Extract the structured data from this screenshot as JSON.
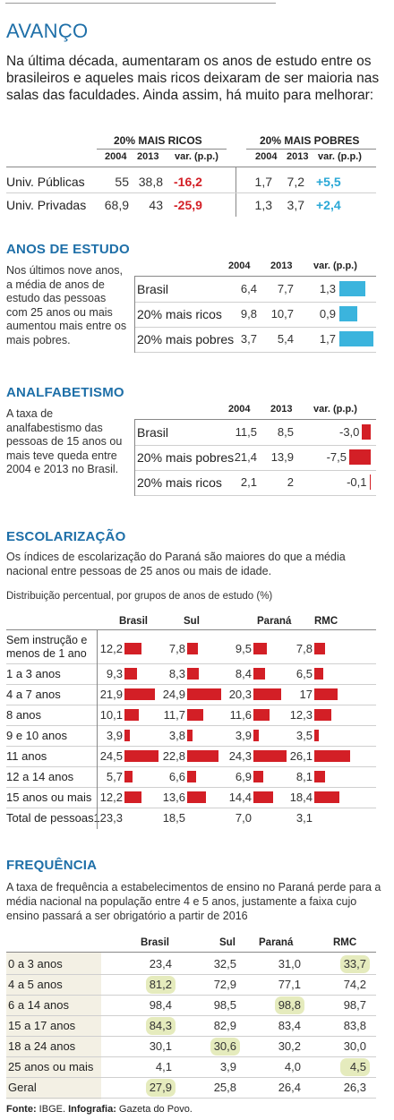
{
  "title": "AVANÇO",
  "intro": "Na última década, aumentaram os anos de estudo entre os brasileiros e aqueles mais ricos deixaram de ser maioria nas salas das faculdades. Ainda assim, há muito para melhorar:",
  "chart_data": [
    {
      "type": "table",
      "groups": [
        "20% MAIS RICOS",
        "20% MAIS POBRES"
      ],
      "columns": [
        "2004",
        "2013",
        "var. (p.p.)",
        "2004",
        "2013",
        "var. (p.p.)"
      ],
      "rows": [
        {
          "label": "Univ. Públicas",
          "rich": [
            "55",
            "38,8",
            "-16,2"
          ],
          "poor": [
            "1,7",
            "7,2",
            "+5,5"
          ]
        },
        {
          "label": "Univ. Privadas",
          "rich": [
            "68,9",
            "43",
            "-25,9"
          ],
          "poor": [
            "1,3",
            "3,7",
            "+2,4"
          ]
        }
      ]
    },
    {
      "type": "bar",
      "title": "ANOS DE ESTUDO",
      "description": "Nos últimos nove anos, a média de anos de estudo das pessoas com 25 anos ou mais aumentou mais entre os mais pobres.",
      "columns": [
        "2004",
        "2013",
        "var. (p.p.)"
      ],
      "rows": [
        {
          "label": "Brasil",
          "v2004": "6,4",
          "v2013": "7,7",
          "var": "1,3",
          "value": 1.3
        },
        {
          "label": "20% mais ricos",
          "v2004": "9,8",
          "v2013": "10,7",
          "var": "0,9",
          "value": 0.9
        },
        {
          "label": "20% mais pobres",
          "v2004": "3,7",
          "v2013": "5,4",
          "var": "1,7",
          "value": 1.7
        }
      ],
      "bar_color": "#3bb4dd"
    },
    {
      "type": "bar",
      "title": "ANALFABETISMO",
      "description": "A taxa de analfabestismo das pessoas de 15 anos ou mais teve queda entre 2004 e 2013 no Brasil.",
      "columns": [
        "2004",
        "2013",
        "var. (p.p.)"
      ],
      "rows": [
        {
          "label": "Brasil",
          "v2004": "11,5",
          "v2013": "8,5",
          "var": "-3,0",
          "value": -3.0
        },
        {
          "label": "20% mais pobres",
          "v2004": "21,4",
          "v2013": "13,9",
          "var": "-7,5",
          "value": -7.5
        },
        {
          "label": "20% mais ricos",
          "v2004": "2,1",
          "v2013": "2",
          "var": "-0,1",
          "value": -0.1
        }
      ],
      "bar_color": "#d31f26"
    },
    {
      "type": "bar",
      "title": "ESCOLARIZAÇÃO",
      "description": "Os índices de escolarização do Paraná são maiores do que a média nacional entre pessoas de 25 anos ou mais de idade.",
      "subtitle": "Distribuição percentual, por grupos de anos de estudo (%)",
      "series_names": [
        "Brasil",
        "Sul",
        "Paraná",
        "RMC"
      ],
      "rows": [
        {
          "label": "Sem instrução e menos de 1 ano",
          "values": [
            "12,2",
            "7,8",
            "9,5",
            "7,8"
          ],
          "num": [
            12.2,
            7.8,
            9.5,
            7.8
          ]
        },
        {
          "label": "1 a 3 anos",
          "values": [
            "9,3",
            "8,3",
            "8,4",
            "6,5"
          ],
          "num": [
            9.3,
            8.3,
            8.4,
            6.5
          ]
        },
        {
          "label": "4 a 7 anos",
          "values": [
            "21,9",
            "24,9",
            "20,3",
            "17"
          ],
          "num": [
            21.9,
            24.9,
            20.3,
            17
          ]
        },
        {
          "label": "8 anos",
          "values": [
            "10,1",
            "11,7",
            "11,6",
            "12,3"
          ],
          "num": [
            10.1,
            11.7,
            11.6,
            12.3
          ]
        },
        {
          "label": "9 e 10 anos",
          "values": [
            "3,9",
            "3,8",
            "3,9",
            "3,5"
          ],
          "num": [
            3.9,
            3.8,
            3.9,
            3.5
          ]
        },
        {
          "label": "11 anos",
          "values": [
            "24,5",
            "22,8",
            "24,3",
            "26,1"
          ],
          "num": [
            24.5,
            22.8,
            24.3,
            26.1
          ]
        },
        {
          "label": "12 a 14 anos",
          "values": [
            "5,7",
            "6,6",
            "6,9",
            "8,1"
          ],
          "num": [
            5.7,
            6.6,
            6.9,
            8.1
          ]
        },
        {
          "label": "15 anos ou mais",
          "values": [
            "12,2",
            "13,6",
            "14,4",
            "18,4"
          ],
          "num": [
            12.2,
            13.6,
            14.4,
            18.4
          ]
        }
      ],
      "total": {
        "label": "Total de pessoas",
        "values": [
          "123,3",
          "18,5",
          "7,0",
          "3,1"
        ]
      },
      "bar_color": "#d31f26"
    },
    {
      "type": "table",
      "title": "FREQUÊNCIA",
      "description": "A taxa de frequência a estabelecimentos de ensino no Paraná perde para a média nacional na população entre 4 e 5 anos, justamente a faixa cujo ensino passará a ser obrigatório a partir de 2016",
      "columns": [
        "Brasil",
        "Sul",
        "Paraná",
        "RMC"
      ],
      "rows": [
        {
          "label": "0 a 3 anos",
          "values": [
            "23,4",
            "32,5",
            "31,0",
            "33,7"
          ],
          "highlight": 3
        },
        {
          "label": "4 a 5 anos",
          "values": [
            "81,2",
            "72,9",
            "77,1",
            "74,2"
          ],
          "highlight": 0
        },
        {
          "label": "6 a 14 anos",
          "values": [
            "98,4",
            "98,5",
            "98,8",
            "98,7"
          ],
          "highlight": 2
        },
        {
          "label": "15 a 17 anos",
          "values": [
            "84,3",
            "82,9",
            "83,4",
            "83,8"
          ],
          "highlight": 0
        },
        {
          "label": "18 a 24 anos",
          "values": [
            "30,1",
            "30,6",
            "30,2",
            "30,0"
          ],
          "highlight": 1
        },
        {
          "label": "25 anos ou mais",
          "values": [
            "4,1",
            "3,9",
            "4,0",
            "4,5"
          ],
          "highlight": 3
        },
        {
          "label": "Geral",
          "values": [
            "27,9",
            "25,8",
            "26,4",
            "26,3"
          ],
          "highlight": 0
        }
      ],
      "highlight_color": "#e5ebbd"
    }
  ],
  "source_prefix": "Fonte:",
  "source_text": "IBGE.",
  "credit_prefix": "Infografia:",
  "credit_text": "Gazeta do Povo."
}
